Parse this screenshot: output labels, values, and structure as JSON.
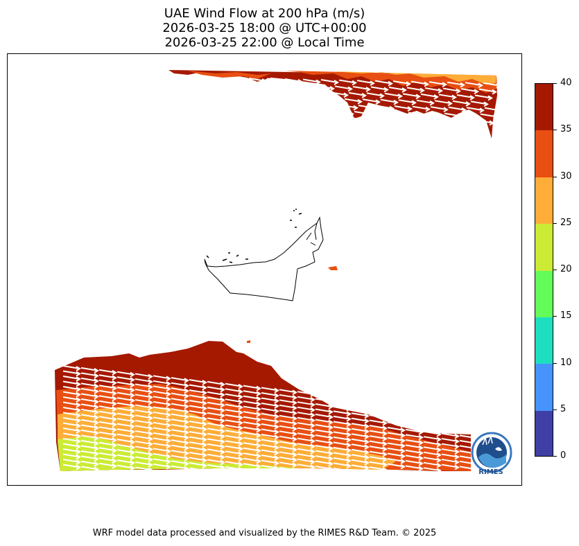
{
  "title": {
    "line1": "UAE Wind Flow at 200 hPa (m/s)",
    "line2": "2026-03-25 18:00 @ UTC+00:00",
    "line3": "2026-03-25 22:00 @ Local Time"
  },
  "colorbar": {
    "min": 0,
    "max": 40,
    "tick_labels": [
      "0",
      "5",
      "10",
      "15",
      "20",
      "25",
      "30",
      "35",
      "40"
    ],
    "levels": [
      {
        "from": 0,
        "to": 5,
        "color": "#3f3fa5"
      },
      {
        "from": 5,
        "to": 10,
        "color": "#4694fb"
      },
      {
        "from": 10,
        "to": 15,
        "color": "#1ddfc0"
      },
      {
        "from": 15,
        "to": 20,
        "color": "#63fc59"
      },
      {
        "from": 20,
        "to": 25,
        "color": "#cbeb35"
      },
      {
        "from": 25,
        "to": 30,
        "color": "#fdad38"
      },
      {
        "from": 30,
        "to": 35,
        "color": "#e84f12"
      },
      {
        "from": 35,
        "to": 40,
        "color": "#a51900"
      }
    ]
  },
  "map": {
    "region": "UAE",
    "field": "wind speed",
    "wind_direction": "west-to-east",
    "vectors": "white arrows"
  },
  "logo": {
    "text": "RIMES",
    "icon": "rimes-logo-icon"
  },
  "footer": "WRF model data processed and visualized by the RIMES R&D Team. © 2025"
}
